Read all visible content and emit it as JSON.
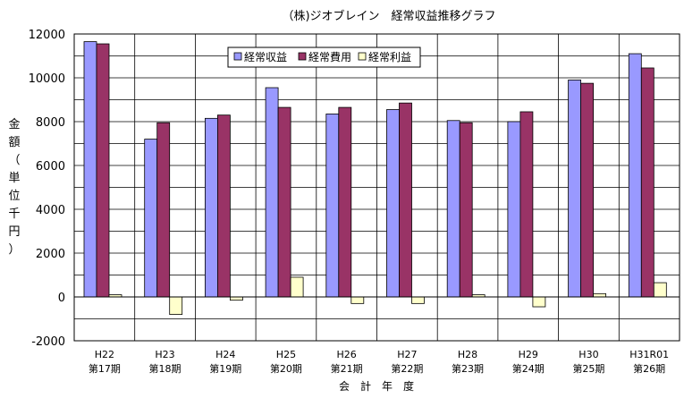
{
  "chart_data": {
    "type": "bar",
    "title": "（株)ジオブレイン　経常収益推移グラフ",
    "xlabel": "会　計　年　度",
    "ylabel_chars": [
      "金",
      "額",
      "（",
      "単",
      "位",
      "千",
      "円",
      "）"
    ],
    "ylim": [
      -2000,
      12000
    ],
    "yticks": [
      -2000,
      0,
      2000,
      4000,
      6000,
      8000,
      10000,
      12000
    ],
    "grid": true,
    "legend_position": "top-center",
    "categories": [
      [
        "H22",
        "第17期"
      ],
      [
        "H23",
        "第18期"
      ],
      [
        "H24",
        "第19期"
      ],
      [
        "H25",
        "第20期"
      ],
      [
        "H26",
        "第21期"
      ],
      [
        "H27",
        "第22期"
      ],
      [
        "H28",
        "第23期"
      ],
      [
        "H29",
        "第24期"
      ],
      [
        "H30",
        "第25期"
      ],
      [
        "H31R01",
        "第26期"
      ]
    ],
    "series": [
      {
        "name": "経常収益",
        "color": "#9999ff",
        "values": [
          11650,
          7200,
          8150,
          9550,
          8350,
          8550,
          8050,
          8000,
          9900,
          11100
        ]
      },
      {
        "name": "経常費用",
        "color": "#993366",
        "values": [
          11550,
          7950,
          8300,
          8650,
          8650,
          8850,
          7950,
          8450,
          9750,
          10450
        ]
      },
      {
        "name": "経常利益",
        "color": "#ffffcc",
        "values": [
          100,
          -800,
          -150,
          900,
          -300,
          -300,
          100,
          -450,
          150,
          650
        ]
      }
    ]
  }
}
